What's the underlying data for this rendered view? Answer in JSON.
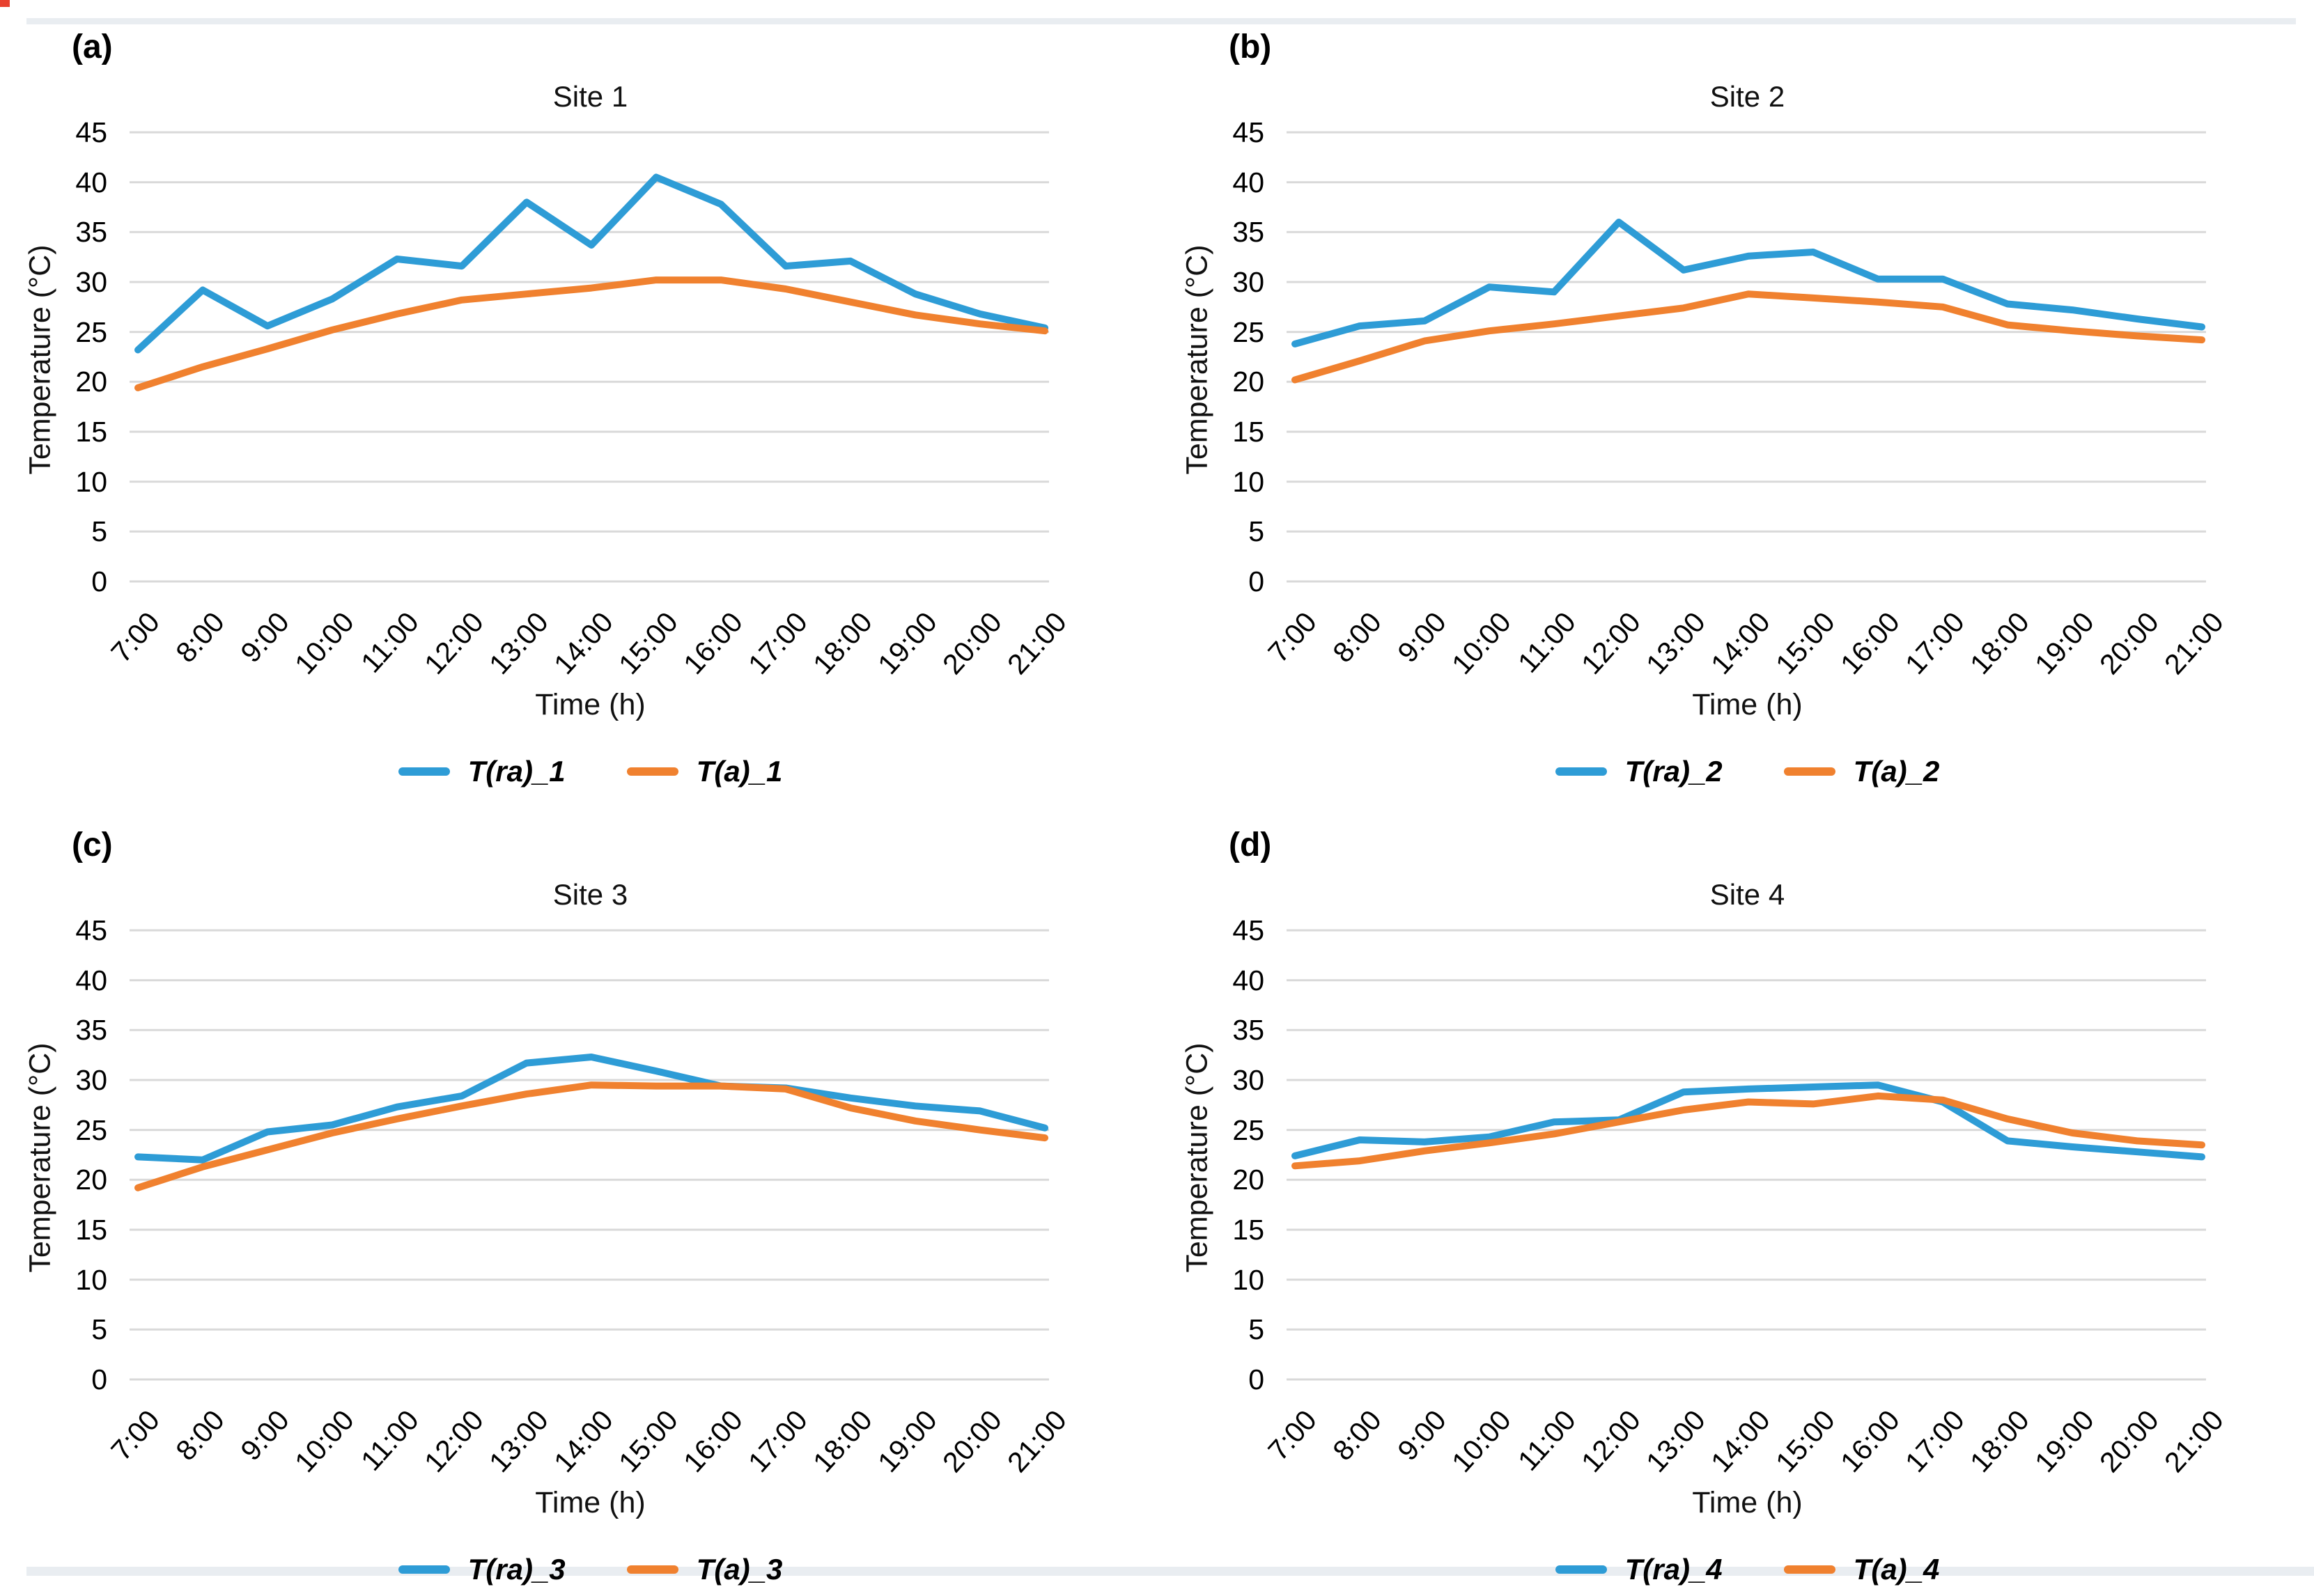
{
  "colors": {
    "series_blue": "#2E9CD6",
    "series_orange": "#F0812F",
    "grid": "#D9D9D9",
    "page_strip": "#E9EDF1",
    "corner_mark": "#E8412F"
  },
  "axis": {
    "y_label": "Temperature (°C)",
    "x_label": "Time (h)",
    "y_ticks": [
      45,
      40,
      35,
      30,
      25,
      20,
      15,
      10,
      5,
      0
    ],
    "ymin": 0,
    "ymax": 45
  },
  "chart_data": [
    {
      "type": "line",
      "panel_letter": "(a)",
      "title": "Site 1",
      "xlabel": "Time (h)",
      "ylabel": "Temperature (°C)",
      "ylim": [
        0,
        45
      ],
      "grid": true,
      "legend_position": "bottom",
      "categories": [
        "7:00",
        "8:00",
        "9:00",
        "10:00",
        "11:00",
        "12:00",
        "13:00",
        "14:00",
        "15:00",
        "16:00",
        "17:00",
        "18:00",
        "19:00",
        "20:00",
        "21:00"
      ],
      "series": [
        {
          "name": "T(ra)_1",
          "color": "#2E9CD6",
          "values": [
            23.2,
            29.2,
            25.6,
            28.3,
            32.3,
            31.6,
            38.0,
            33.7,
            40.5,
            37.8,
            31.6,
            32.1,
            28.8,
            26.8,
            25.4
          ]
        },
        {
          "name": "T(a)_1",
          "color": "#F0812F",
          "values": [
            19.4,
            21.5,
            23.3,
            25.2,
            26.8,
            28.2,
            28.8,
            29.4,
            30.2,
            30.2,
            29.3,
            28.0,
            26.7,
            25.8,
            25.1
          ]
        }
      ]
    },
    {
      "type": "line",
      "panel_letter": "(b)",
      "title": "Site 2",
      "xlabel": "Time (h)",
      "ylabel": "Temperature (°C)",
      "ylim": [
        0,
        45
      ],
      "grid": true,
      "legend_position": "bottom",
      "categories": [
        "7:00",
        "8:00",
        "9:00",
        "10:00",
        "11:00",
        "12:00",
        "13:00",
        "14:00",
        "15:00",
        "16:00",
        "17:00",
        "18:00",
        "19:00",
        "20:00",
        "21:00"
      ],
      "series": [
        {
          "name": "T(ra)_2",
          "color": "#2E9CD6",
          "values": [
            23.8,
            25.6,
            26.1,
            29.5,
            29.0,
            36.0,
            31.2,
            32.6,
            33.0,
            30.3,
            30.3,
            27.8,
            27.2,
            26.3,
            25.5
          ]
        },
        {
          "name": "T(a)_2",
          "color": "#F0812F",
          "values": [
            20.2,
            22.1,
            24.1,
            25.1,
            25.8,
            26.6,
            27.4,
            28.8,
            28.4,
            28.0,
            27.5,
            25.7,
            25.1,
            24.6,
            24.2
          ]
        }
      ]
    },
    {
      "type": "line",
      "panel_letter": "(c)",
      "title": "Site 3",
      "xlabel": "Time (h)",
      "ylabel": "Temperature (°C)",
      "ylim": [
        0,
        45
      ],
      "grid": true,
      "legend_position": "bottom",
      "categories": [
        "7:00",
        "8:00",
        "9:00",
        "10:00",
        "11:00",
        "12:00",
        "13:00",
        "14:00",
        "15:00",
        "16:00",
        "17:00",
        "18:00",
        "19:00",
        "20:00",
        "21:00"
      ],
      "series": [
        {
          "name": "T(ra)_3",
          "color": "#2E9CD6",
          "values": [
            22.3,
            22.0,
            24.8,
            25.5,
            27.3,
            28.4,
            31.7,
            32.3,
            30.9,
            29.4,
            29.2,
            28.2,
            27.4,
            26.9,
            25.2
          ]
        },
        {
          "name": "T(a)_3",
          "color": "#F0812F",
          "values": [
            19.2,
            21.3,
            23.0,
            24.7,
            26.1,
            27.4,
            28.6,
            29.5,
            29.4,
            29.4,
            29.1,
            27.2,
            25.9,
            25.0,
            24.2
          ]
        }
      ]
    },
    {
      "type": "line",
      "panel_letter": "(d)",
      "title": "Site 4",
      "xlabel": "Time (h)",
      "ylabel": "Temperature (°C)",
      "ylim": [
        0,
        45
      ],
      "grid": true,
      "legend_position": "bottom",
      "categories": [
        "7:00",
        "8:00",
        "9:00",
        "10:00",
        "11:00",
        "12:00",
        "13:00",
        "14:00",
        "15:00",
        "16:00",
        "17:00",
        "18:00",
        "19:00",
        "20:00",
        "21:00"
      ],
      "series": [
        {
          "name": "T(ra)_4",
          "color": "#2E9CD6",
          "values": [
            22.4,
            24.0,
            23.8,
            24.3,
            25.8,
            26.0,
            28.8,
            29.1,
            29.3,
            29.5,
            27.8,
            23.9,
            23.3,
            22.8,
            22.3
          ]
        },
        {
          "name": "T(a)_4",
          "color": "#F0812F",
          "values": [
            21.4,
            21.9,
            22.9,
            23.7,
            24.6,
            25.8,
            27.0,
            27.8,
            27.6,
            28.4,
            28.0,
            26.1,
            24.7,
            23.9,
            23.5
          ]
        }
      ]
    }
  ]
}
